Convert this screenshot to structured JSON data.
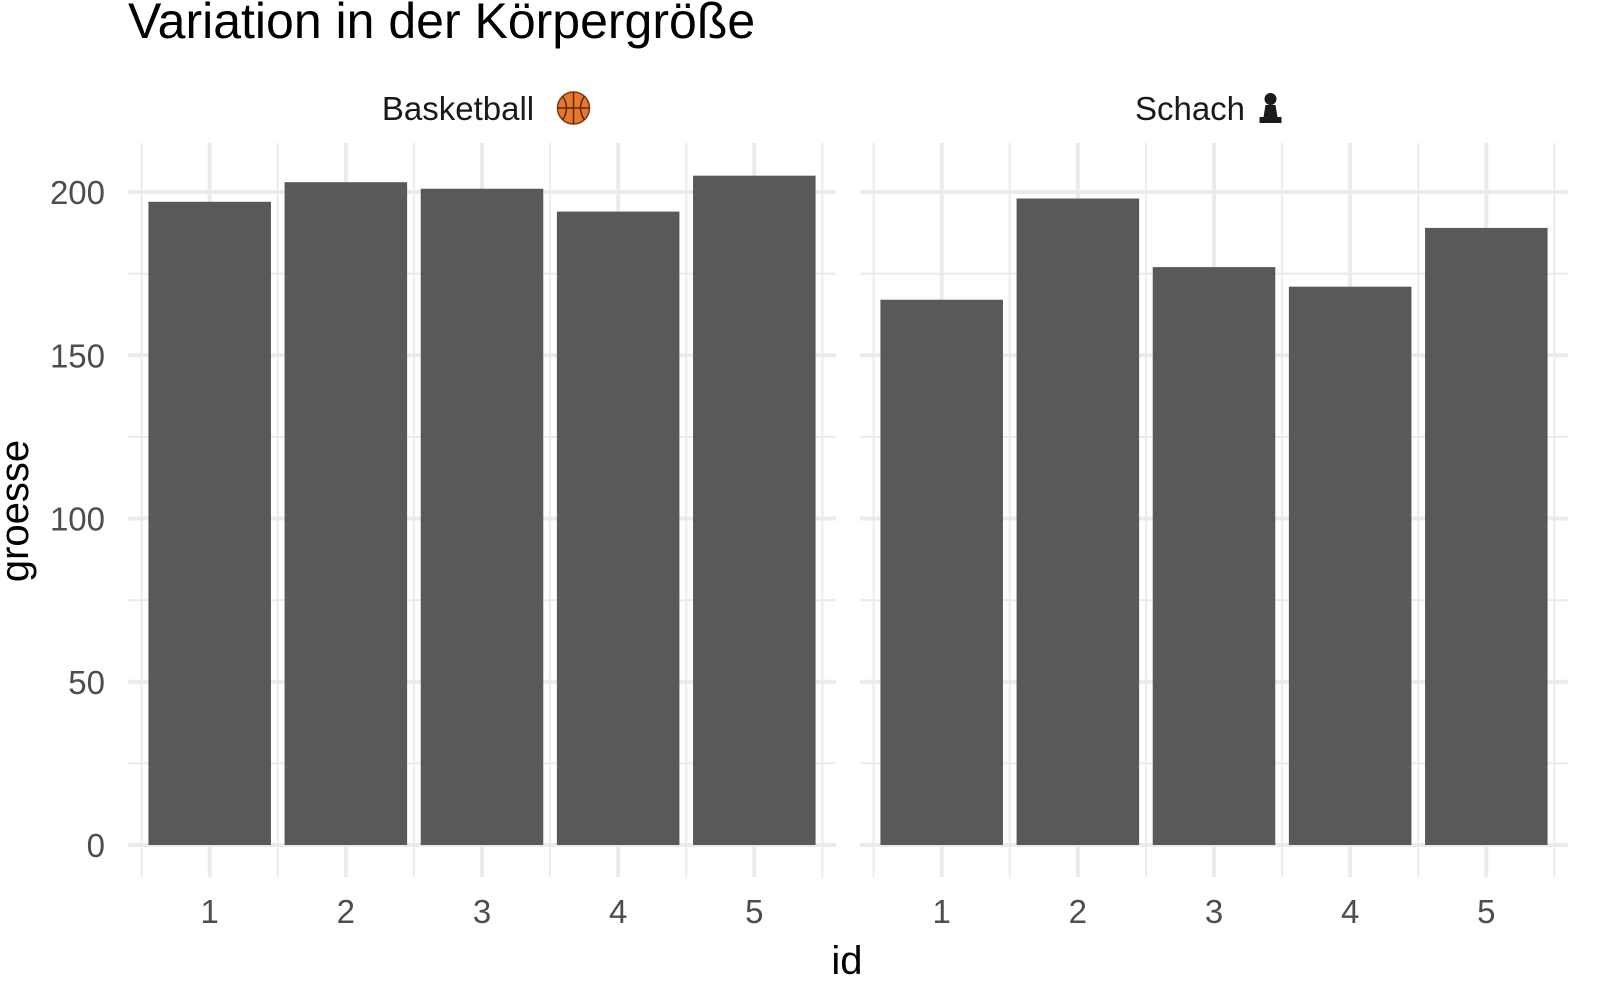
{
  "chart_data": {
    "type": "bar",
    "title": "Variation in der Körpergröße",
    "xlabel": "id",
    "ylabel": "groesse",
    "ylim": [
      0,
      212
    ],
    "y_ticks": [
      0,
      50,
      100,
      150,
      200
    ],
    "categories": [
      "1",
      "2",
      "3",
      "4",
      "5"
    ],
    "grid": true,
    "bar_color": "#595959",
    "grid_color": "#ebebeb",
    "panels": [
      {
        "label": "Basketball",
        "icon": "basketball-icon",
        "values": [
          197,
          203,
          201,
          194,
          205
        ]
      },
      {
        "label": "Schach",
        "icon": "chess-pawn-icon",
        "values": [
          167,
          198,
          177,
          171,
          189
        ]
      }
    ]
  }
}
